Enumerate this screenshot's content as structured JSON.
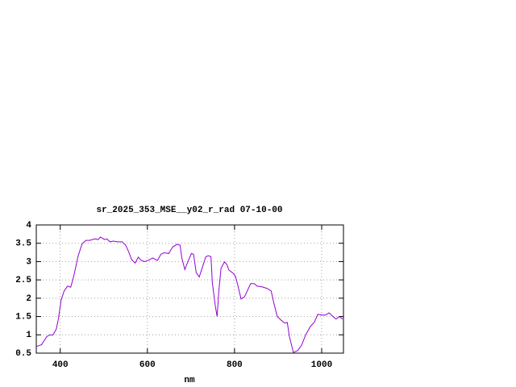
{
  "chart_data": {
    "type": "line",
    "title": "sr_2025_353_MSE__y02_r_rad 07-10-00",
    "x_label": "nm",
    "x": [
      345,
      357,
      369,
      376,
      383,
      391,
      396,
      402,
      409,
      417,
      424,
      431,
      441,
      450,
      459,
      468,
      479,
      487,
      492,
      502,
      507,
      514,
      522,
      531,
      542,
      550,
      557,
      564,
      572,
      579,
      586,
      594,
      605,
      612,
      623,
      631,
      638,
      649,
      658,
      668,
      675,
      679,
      686,
      694,
      701,
      706,
      712,
      719,
      727,
      734,
      740,
      746,
      749,
      756,
      760,
      764,
      769,
      777,
      782,
      787,
      797,
      802,
      808,
      815,
      823,
      830,
      837,
      845,
      852,
      863,
      874,
      884,
      891,
      898,
      908,
      915,
      921,
      926,
      935,
      945,
      954,
      963,
      974,
      983,
      991,
      1000,
      1009,
      1017,
      1026,
      1033,
      1041,
      1048
    ],
    "values": [
      0.68,
      0.73,
      0.95,
      1.0,
      0.99,
      1.16,
      1.45,
      1.95,
      2.2,
      2.33,
      2.3,
      2.6,
      3.15,
      3.48,
      3.58,
      3.58,
      3.62,
      3.6,
      3.67,
      3.6,
      3.62,
      3.54,
      3.56,
      3.54,
      3.54,
      3.45,
      3.27,
      3.05,
      2.96,
      3.12,
      3.03,
      3.0,
      3.05,
      3.1,
      3.03,
      3.2,
      3.24,
      3.22,
      3.4,
      3.47,
      3.45,
      3.1,
      2.78,
      3.03,
      3.22,
      3.2,
      2.7,
      2.58,
      2.87,
      3.13,
      3.16,
      3.13,
      2.43,
      1.78,
      1.5,
      2.2,
      2.82,
      2.99,
      2.93,
      2.77,
      2.68,
      2.6,
      2.33,
      1.98,
      2.04,
      2.22,
      2.4,
      2.4,
      2.33,
      2.31,
      2.27,
      2.2,
      1.83,
      1.5,
      1.39,
      1.32,
      1.34,
      0.95,
      0.52,
      0.57,
      0.72,
      0.99,
      1.23,
      1.34,
      1.56,
      1.54,
      1.54,
      1.6,
      1.5,
      1.43,
      1.5,
      1.43
    ],
    "color": "#9400d3",
    "xlim": [
      345,
      1050
    ],
    "ylim": [
      0.5,
      4
    ],
    "xticks": [
      400,
      600,
      800,
      1000
    ],
    "yticks": [
      0.5,
      1,
      1.5,
      2,
      2.5,
      3,
      3.5,
      4
    ],
    "grid": true
  }
}
